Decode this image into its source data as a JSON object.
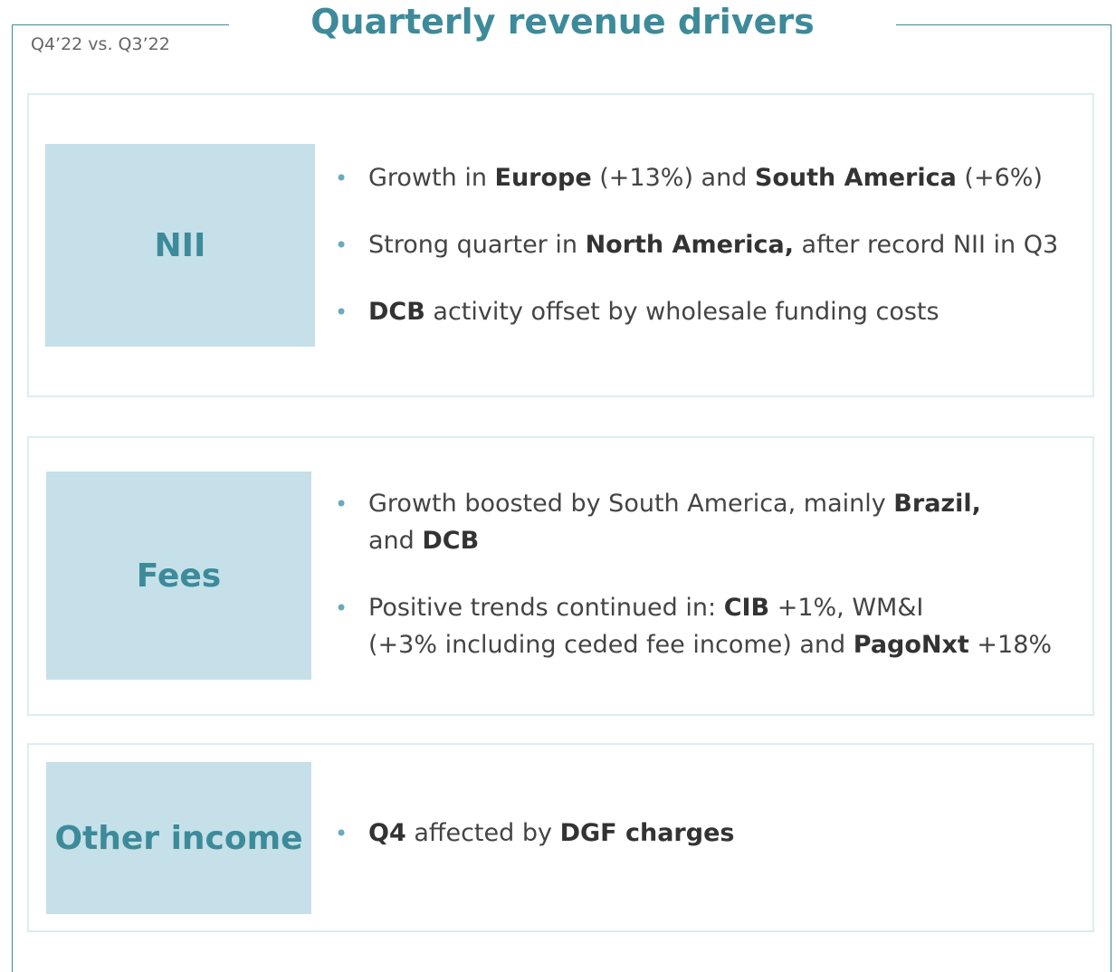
{
  "header": {
    "title": "Quarterly revenue drivers",
    "subtitle": "Q4’22 vs. Q3’22"
  },
  "sections": [
    {
      "label": "NII",
      "bullets": [
        [
          [
            {
              "text": "Growth in "
            },
            {
              "text": "Europe",
              "bold": true
            },
            {
              "text": " (+13%) and "
            },
            {
              "text": "South America",
              "bold": true
            },
            {
              "text": " (+6%)"
            }
          ]
        ],
        [
          [
            {
              "text": "Strong quarter in "
            },
            {
              "text": "North America,",
              "bold": true
            },
            {
              "text": " after record NII in Q3"
            }
          ]
        ],
        [
          [
            {
              "text": "DCB",
              "bold": true
            },
            {
              "text": " activity offset by wholesale funding costs"
            }
          ]
        ]
      ]
    },
    {
      "label": "Fees",
      "bullets": [
        [
          [
            {
              "text": "Growth boosted by South America, mainly "
            },
            {
              "text": "Brazil,",
              "bold": true
            }
          ],
          [
            {
              "text": "and "
            },
            {
              "text": "DCB",
              "bold": true
            }
          ]
        ],
        [
          [
            {
              "text": "Positive trends continued in: "
            },
            {
              "text": "CIB",
              "bold": true
            },
            {
              "text": " +1%, WM&I"
            }
          ],
          [
            {
              "text": "(+3% including ceded fee income) and "
            },
            {
              "text": "PagoNxt",
              "bold": true
            },
            {
              "text": " +18%"
            }
          ]
        ]
      ]
    },
    {
      "label": "Other income",
      "bullets": [
        [
          [
            {
              "text": "Q4",
              "bold": true
            },
            {
              "text": " affected by "
            },
            {
              "text": "DGF charges",
              "bold": true
            }
          ]
        ]
      ]
    }
  ]
}
